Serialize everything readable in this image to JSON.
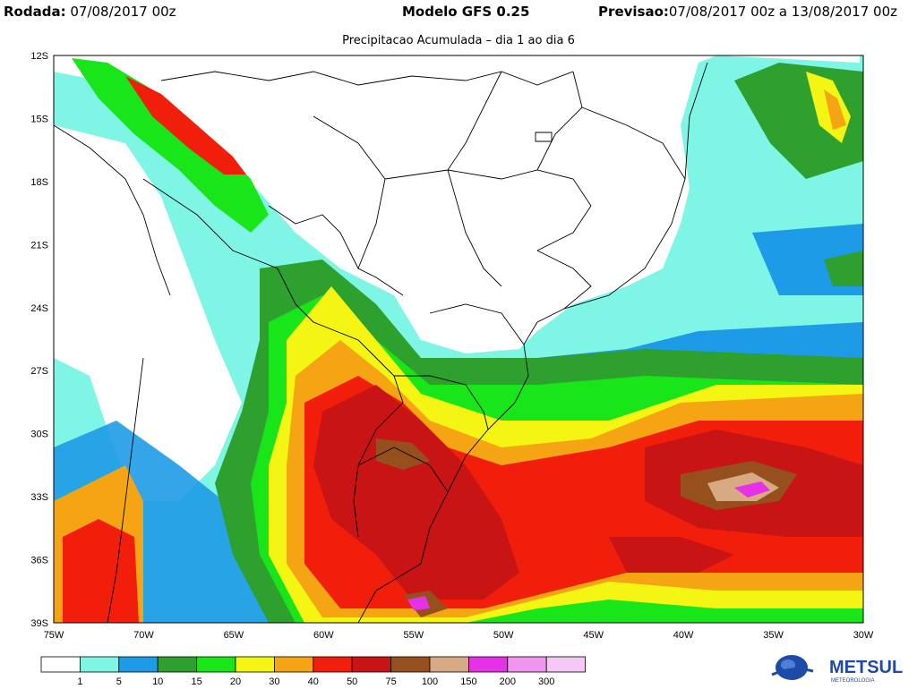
{
  "header": {
    "run_label": "Rodada:",
    "run_value": "07/08/2017 00z",
    "model_label": "Modelo GFS 0.25",
    "forecast_label": "Previsao:",
    "forecast_value": "07/08/2017 00z a 13/08/2017 00z"
  },
  "subtitle": "Precipitacao Acumulada – dia 1 ao dia 6",
  "map": {
    "lat_labels": [
      "12S",
      "15S",
      "18S",
      "21S",
      "24S",
      "27S",
      "30S",
      "33S",
      "36S",
      "39S"
    ],
    "lon_labels": [
      "75W",
      "70W",
      "65W",
      "60W",
      "55W",
      "50W",
      "45W",
      "40W",
      "35W",
      "30W"
    ],
    "lat_range": [
      -39,
      -12
    ],
    "lon_range": [
      -75,
      -30
    ]
  },
  "legend": {
    "colors": [
      "#ffffff",
      "#7ff5e6",
      "#1e9be6",
      "#2ea02e",
      "#19e619",
      "#f5f514",
      "#f5a514",
      "#f01e0a",
      "#c81414",
      "#96501e",
      "#d8aa84",
      "#e632e6",
      "#f096f0",
      "#f5c8f5"
    ],
    "labels": [
      "1",
      "5",
      "10",
      "15",
      "20",
      "30",
      "40",
      "50",
      "75",
      "100",
      "150",
      "200",
      "300"
    ]
  },
  "logo": {
    "text": "METSUL",
    "subtext": "METEOROLOGIA",
    "color": "#1e4aa8"
  }
}
